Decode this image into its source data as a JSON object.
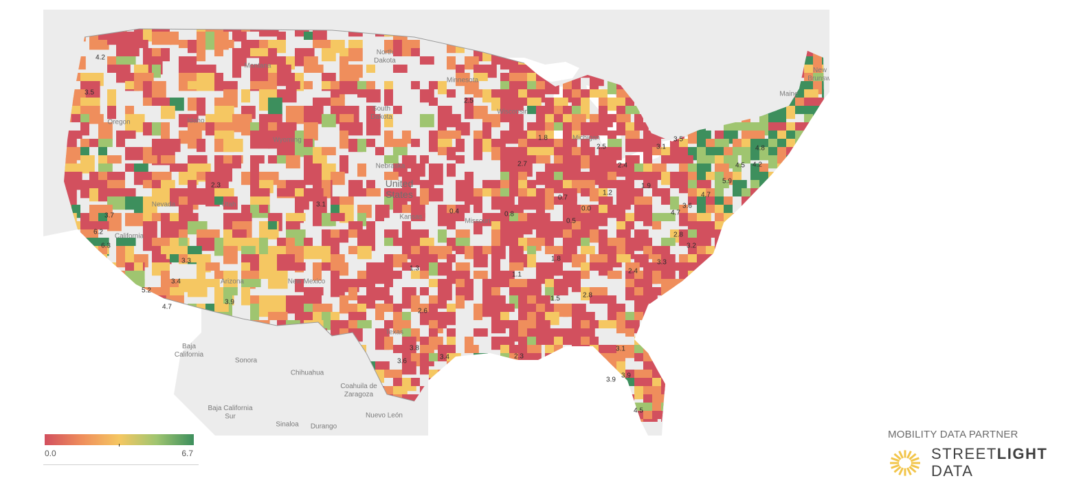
{
  "map": {
    "places": [
      {
        "id": "north-dakota",
        "text": "North\nDakota",
        "big": false
      },
      {
        "id": "montana",
        "text": "Montana",
        "big": false
      },
      {
        "id": "minnesota",
        "text": "Minnesota",
        "big": false
      },
      {
        "id": "south-dakota",
        "text": "South\nDakota",
        "big": false
      },
      {
        "id": "idaho",
        "text": "Idaho",
        "big": false
      },
      {
        "id": "oregon",
        "text": "Oregon",
        "big": false
      },
      {
        "id": "wyoming",
        "text": "Wyoming",
        "big": false
      },
      {
        "id": "wisconsin",
        "text": "Wisconsin",
        "big": false
      },
      {
        "id": "michigan",
        "text": "Michigan",
        "big": false
      },
      {
        "id": "nebraska",
        "text": "Nebraska",
        "big": false
      },
      {
        "id": "united-states",
        "text": "United\nStates",
        "big": true
      },
      {
        "id": "nevada",
        "text": "Nevada",
        "big": false
      },
      {
        "id": "utah",
        "text": "Utah",
        "big": false
      },
      {
        "id": "california",
        "text": "California",
        "big": false
      },
      {
        "id": "kansas",
        "text": "Kansas",
        "big": false
      },
      {
        "id": "missouri",
        "text": "Missouri",
        "big": false
      },
      {
        "id": "arizona",
        "text": "Arizona",
        "big": false
      },
      {
        "id": "new-mexico",
        "text": "New Mexico",
        "big": false
      },
      {
        "id": "texas",
        "text": "Texas",
        "big": false
      },
      {
        "id": "baja-california",
        "text": "Baja\nCalifornia",
        "big": false
      },
      {
        "id": "sonora",
        "text": "Sonora",
        "big": false
      },
      {
        "id": "chihuahua",
        "text": "Chihuahua",
        "big": false
      },
      {
        "id": "coahuila",
        "text": "Coahuila de\nZaragoza",
        "big": false
      },
      {
        "id": "baja-california-sur",
        "text": "Baja California\nSur",
        "big": false
      },
      {
        "id": "sinaloa",
        "text": "Sinaloa",
        "big": false
      },
      {
        "id": "durango",
        "text": "Durango",
        "big": false
      },
      {
        "id": "nuevo-leon",
        "text": "Nuevo León",
        "big": false
      },
      {
        "id": "new-brunswick",
        "text": "New\nBrunswi",
        "big": false
      },
      {
        "id": "maine",
        "text": "Maine",
        "big": false
      }
    ],
    "county_labels": [
      "4.2",
      "3.5",
      "2.3",
      "3.1",
      "3.7",
      "6.2",
      "6.3",
      "3.3",
      "3.4",
      "5.2",
      "4.7",
      "3.9",
      "2.5",
      "1.8",
      "2.7",
      "2.5",
      "0.7",
      "0.0",
      "1.2",
      "1.9",
      "0.4",
      "0.8",
      "0.5",
      "1.3",
      "1.8",
      "1.1",
      "1.5",
      "2.8",
      "2.4",
      "2.6",
      "3.1",
      "3.5",
      "2.4",
      "4.8",
      "4.5",
      "4.2",
      "5.9",
      "4.7",
      "3.6",
      "4.7",
      "2.8",
      "3.2",
      "3.3",
      "3.8",
      "3.6",
      "3.4",
      "2.3",
      "3.1",
      "3.9",
      "3.9",
      "4.5"
    ]
  },
  "legend": {
    "min_label": "0.0",
    "max_label": "6.7",
    "colors": [
      "#d2505e",
      "#ef8e5c",
      "#f5c762",
      "#9fc570",
      "#3d8f5d"
    ]
  },
  "partner": {
    "caption": "MOBILITY DATA PARTNER",
    "brand_line1_regular": "STREET",
    "brand_line1_bold": "LIGHT",
    "brand_line2": "DATA",
    "logo_icon": "sunburst-logo-icon",
    "logo_color": "#f2c54a"
  }
}
